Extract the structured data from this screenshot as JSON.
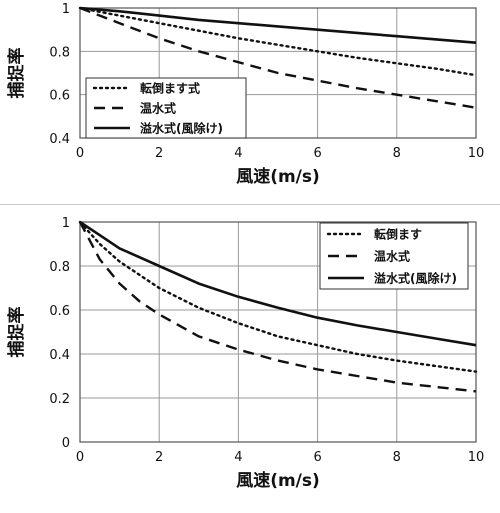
{
  "chart_data": [
    {
      "type": "line",
      "xlabel": "風速(m/s)",
      "ylabel": "捕捉率",
      "xlim": [
        0,
        10
      ],
      "ylim": [
        0.4,
        1
      ],
      "x_ticks": [
        0,
        2,
        4,
        6,
        8,
        10
      ],
      "y_ticks": [
        0.4,
        0.6,
        0.8,
        1
      ],
      "grid": true,
      "legend_position": "bottom-left",
      "series": [
        {
          "name": "転倒ます式",
          "line_style": "dotted",
          "x": [
            0,
            1,
            2,
            3,
            4,
            5,
            6,
            7,
            8,
            9,
            10
          ],
          "y": [
            1.0,
            0.965,
            0.93,
            0.895,
            0.86,
            0.83,
            0.8,
            0.77,
            0.745,
            0.72,
            0.69
          ]
        },
        {
          "name": "温水式",
          "line_style": "dashed",
          "x": [
            0,
            1,
            2,
            3,
            4,
            5,
            6,
            7,
            8,
            9,
            10
          ],
          "y": [
            1.0,
            0.93,
            0.86,
            0.8,
            0.75,
            0.7,
            0.665,
            0.63,
            0.6,
            0.57,
            0.54
          ]
        },
        {
          "name": "溢水式(風除け)",
          "line_style": "solid",
          "x": [
            0,
            1,
            2,
            3,
            4,
            5,
            6,
            7,
            8,
            9,
            10
          ],
          "y": [
            1.0,
            0.985,
            0.965,
            0.945,
            0.93,
            0.915,
            0.9,
            0.885,
            0.87,
            0.855,
            0.84
          ]
        }
      ]
    },
    {
      "type": "line",
      "xlabel": "風速(m/s)",
      "ylabel": "捕捉率",
      "xlim": [
        0,
        10
      ],
      "ylim": [
        0,
        1
      ],
      "x_ticks": [
        0,
        2,
        4,
        6,
        8,
        10
      ],
      "y_ticks": [
        0,
        0.2,
        0.4,
        0.6,
        0.8,
        1
      ],
      "grid": true,
      "legend_position": "top-right",
      "series": [
        {
          "name": "転倒ます",
          "line_style": "dotted",
          "x": [
            0,
            0.5,
            1,
            1.5,
            2,
            3,
            4,
            5,
            6,
            7,
            8,
            9,
            10
          ],
          "y": [
            1.0,
            0.9,
            0.82,
            0.76,
            0.7,
            0.61,
            0.54,
            0.48,
            0.44,
            0.4,
            0.37,
            0.345,
            0.32
          ]
        },
        {
          "name": "温水式",
          "line_style": "dashed",
          "x": [
            0,
            0.5,
            1,
            1.5,
            2,
            3,
            4,
            5,
            6,
            7,
            8,
            9,
            10
          ],
          "y": [
            1.0,
            0.83,
            0.72,
            0.64,
            0.58,
            0.48,
            0.42,
            0.37,
            0.33,
            0.3,
            0.27,
            0.25,
            0.23
          ]
        },
        {
          "name": "溢水式(風除け)",
          "line_style": "solid",
          "x": [
            0,
            0.5,
            1,
            1.5,
            2,
            3,
            4,
            5,
            6,
            7,
            8,
            9,
            10
          ],
          "y": [
            1.0,
            0.94,
            0.88,
            0.84,
            0.8,
            0.72,
            0.66,
            0.61,
            0.565,
            0.53,
            0.5,
            0.47,
            0.44
          ]
        }
      ]
    }
  ]
}
